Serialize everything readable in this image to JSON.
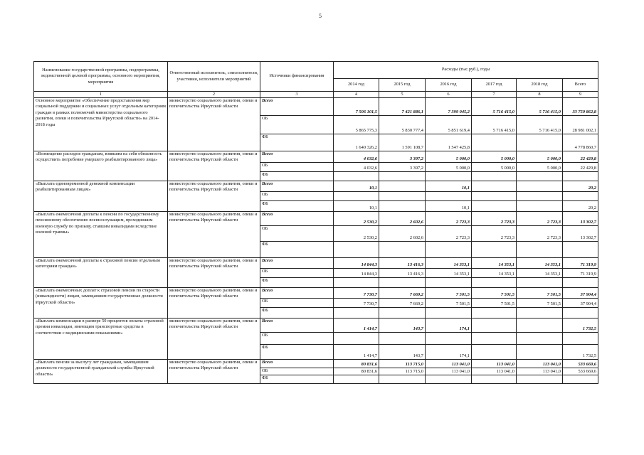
{
  "page_number": "5",
  "header": {
    "col1": "Наименование государственной программы, подпрограммы, ведомственной целевой программы, основного мероприятия, мероприятия",
    "col2": "Ответственный исполнитель, соисполнители, участники, исполнители мероприятий",
    "col3": "Источники финансирования",
    "expenses": "Расходы (тыс.руб.), годы",
    "years": [
      "2014 год",
      "2015 год",
      "2016 год",
      "2017 год",
      "2018 год",
      "Всего"
    ],
    "numbers": [
      "1",
      "2",
      "3",
      "4",
      "5",
      "6",
      "7",
      "8",
      "9"
    ]
  },
  "rows": [
    {
      "name": "Основное мероприятие «Обеспечение предоставления мер социальной поддержки и социальных услуг отдельным категориям граждан в рамках полномочий министерства социального развития, опеки и попечительства Иркутской области» на 2014-2018 годы",
      "executor": "министерство социального развития, опеки и попечительства Иркутской области",
      "sources": [
        {
          "label": "Всего",
          "values": [
            "7 506 101,5",
            "7 421 886,1",
            "7 399 045,2",
            "5 716 415,0",
            "5 716 415,0",
            "33 759 862,8"
          ]
        },
        {
          "label": "ОБ",
          "values": [
            "5 865 775,3",
            "5 830 777,4",
            "5 851 619,4",
            "5 716 415,0",
            "5 716 415,0",
            "28 981 002,1"
          ]
        },
        {
          "label": "ФБ",
          "values": [
            "1 640 326,2",
            "1 591 108,7",
            "1 547 425,8",
            "",
            "",
            "4 778 860,7"
          ]
        }
      ]
    },
    {
      "name": "«Возмещение расходов гражданам, взявшим на себя обязанность осуществить погребение умершего реабилитированного лица»",
      "executor": "министерство социального развития, опеки и попечительства Иркутской области",
      "sources": [
        {
          "label": "Всего",
          "values": [
            "4 032,6",
            "3 397,2",
            "5 000,0",
            "5 000,0",
            "5 000,0",
            "22 429,8"
          ]
        },
        {
          "label": "ОБ",
          "values": [
            "4 032,6",
            "3 397,2",
            "5 000,0",
            "5 000,0",
            "5 000,0",
            "22 429,8"
          ]
        },
        {
          "label": "ФБ",
          "values": [
            "",
            "",
            "",
            "",
            "",
            ""
          ]
        }
      ]
    },
    {
      "name": "«Выплата единовременной денежной компенсации реабилитированным лицам»",
      "executor": "министерство социального развития, опеки и попечительства Иркутской области",
      "sources": [
        {
          "label": "Всего",
          "values": [
            "10,1",
            "",
            "10,1",
            "",
            "",
            "20,2"
          ]
        },
        {
          "label": "ОБ",
          "values": [
            "",
            "",
            "",
            "",
            "",
            ""
          ]
        },
        {
          "label": "ФБ",
          "values": [
            "10,1",
            "",
            "10,1",
            "",
            "",
            "20,2"
          ]
        }
      ]
    },
    {
      "name": "«Выплата ежемесячной доплаты к пенсии по государственному пенсионному обеспечению военнослужащим, проходившим военную службу по призыву, ставшим инвалидами вследствие военной травмы»",
      "executor": "министерство социального развития, опеки и попечительства Иркутской области",
      "sources": [
        {
          "label": "Всего",
          "values": [
            "2 530,2",
            "2 602,6",
            "2 723,3",
            "2 723,3",
            "2 723,3",
            "13 302,7"
          ]
        },
        {
          "label": "ОБ",
          "values": [
            "2 530,2",
            "2 602,6",
            "2 723,3",
            "2 723,3",
            "2 723,3",
            "13 302,7"
          ]
        },
        {
          "label": "ФБ",
          "values": [
            "",
            "",
            "",
            "",
            "",
            ""
          ]
        }
      ]
    },
    {
      "name": "«Выплата ежемесячной доплаты к страховой пенсии отдельным категориям граждан»",
      "executor": "министерство социального развития, опеки и попечительства Иркутской области",
      "sources": [
        {
          "label": "Всего",
          "values": [
            "14 844,3",
            "13 416,3",
            "14 353,1",
            "14 353,1",
            "14 353,1",
            "71 319,9"
          ]
        },
        {
          "label": "ОБ",
          "values": [
            "14 844,3",
            "13 416,3",
            "14 353,1",
            "14 353,1",
            "14 353,1",
            "71 319,9"
          ]
        },
        {
          "label": "ФБ",
          "values": [
            "",
            "",
            "",
            "",
            "",
            ""
          ]
        }
      ]
    },
    {
      "name": "«Выплата ежемесячных доплат к страховой пенсии по старости (инвалидности) лицам, замещавшим государственные должности Иркутской области»",
      "executor": "министерство социального развития, опеки и попечительства Иркутской области",
      "sources": [
        {
          "label": "Всего",
          "values": [
            "7 730,7",
            "7 669,2",
            "7 501,5",
            "7 501,5",
            "7 501,5",
            "37 904,4"
          ]
        },
        {
          "label": "ОБ",
          "values": [
            "7 730,7",
            "7 669,2",
            "7 501,5",
            "7 501,5",
            "7 501,5",
            "37 904,4"
          ]
        },
        {
          "label": "ФБ",
          "values": [
            "",
            "",
            "",
            "",
            "",
            ""
          ]
        }
      ]
    },
    {
      "name": "«Выплата компенсации в размере 50 процентов оплаты страховой премии инвалидам, имеющим транспортные средства в соответствии с медицинскими показаниями»",
      "executor": "министерство социального развития, опеки и попечительства Иркутской области",
      "sources": [
        {
          "label": "Всего",
          "values": [
            "1 414,7",
            "143,7",
            "174,1",
            "",
            "",
            "1 732,5"
          ]
        },
        {
          "label": "ОБ",
          "values": [
            "",
            "",
            "",
            "",
            "",
            ""
          ]
        },
        {
          "label": "ФБ",
          "values": [
            "1 414,7",
            "143,7",
            "174,1",
            "",
            "",
            "1 732,5"
          ]
        }
      ]
    },
    {
      "name": "«Выплата пенсии за выслугу лет гражданам, замещавшим должности государственной гражданской службы Иркутской области»",
      "executor": "министерство социального развития, опеки и попечительства Иркутской области",
      "sources": [
        {
          "label": "Всего",
          "values": [
            "80 831,6",
            "113 715,0",
            "113 041,0",
            "113 041,0",
            "113 041,0",
            "533 669,6"
          ]
        },
        {
          "label": "ОБ",
          "values": [
            "80 831,6",
            "113 715,0",
            "113 041,0",
            "113 041,0",
            "113 041,0",
            "533 669,6"
          ]
        },
        {
          "label": "ФБ",
          "values": [
            "",
            "",
            "",
            "",
            "",
            ""
          ]
        }
      ]
    }
  ]
}
